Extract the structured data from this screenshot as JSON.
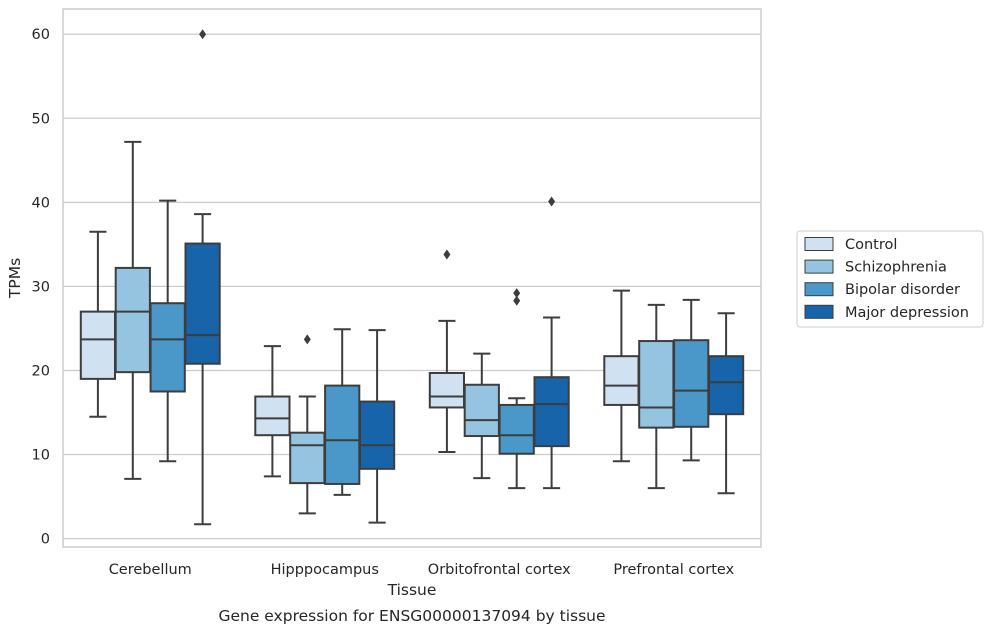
{
  "chart_data": {
    "type": "box",
    "title": "",
    "caption": "Gene expression for ENSG00000137094 by tissue",
    "xlabel": "Tissue",
    "ylabel": "TPMs",
    "ylim": [
      -1,
      63
    ],
    "yticks": [
      0,
      10,
      20,
      30,
      40,
      50,
      60
    ],
    "grid": "horizontal",
    "legend_position": "right",
    "categories": [
      "Cerebellum",
      "Hipppocampus",
      "Orbitofrontal cortex",
      "Prefrontal cortex"
    ],
    "series": [
      {
        "name": "Control",
        "color": "#d0e1f2",
        "boxes": [
          {
            "whislo": 14.5,
            "q1": 19.0,
            "med": 23.7,
            "q3": 27.0,
            "whishi": 36.5,
            "fliers": []
          },
          {
            "whislo": 7.4,
            "q1": 12.3,
            "med": 14.3,
            "q3": 16.9,
            "whishi": 22.9,
            "fliers": []
          },
          {
            "whislo": 10.3,
            "q1": 15.6,
            "med": 16.9,
            "q3": 19.7,
            "whishi": 25.9,
            "fliers": [
              33.8
            ]
          },
          {
            "whislo": 9.2,
            "q1": 15.9,
            "med": 18.2,
            "q3": 21.7,
            "whishi": 29.5,
            "fliers": []
          }
        ]
      },
      {
        "name": "Schizophrenia",
        "color": "#94c4df",
        "boxes": [
          {
            "whislo": 7.1,
            "q1": 19.8,
            "med": 27.0,
            "q3": 32.2,
            "whishi": 47.2,
            "fliers": []
          },
          {
            "whislo": 3.0,
            "q1": 6.6,
            "med": 11.1,
            "q3": 12.6,
            "whishi": 16.9,
            "fliers": [
              23.7
            ]
          },
          {
            "whislo": 7.2,
            "q1": 12.2,
            "med": 14.1,
            "q3": 18.3,
            "whishi": 22.0,
            "fliers": []
          },
          {
            "whislo": 6.0,
            "q1": 13.2,
            "med": 15.6,
            "q3": 23.5,
            "whishi": 27.8,
            "fliers": []
          }
        ]
      },
      {
        "name": "Bipolar disorder",
        "color": "#4a98c9",
        "boxes": [
          {
            "whislo": 9.2,
            "q1": 17.5,
            "med": 23.7,
            "q3": 28.0,
            "whishi": 40.2,
            "fliers": []
          },
          {
            "whislo": 5.2,
            "q1": 6.5,
            "med": 11.7,
            "q3": 18.2,
            "whishi": 24.9,
            "fliers": []
          },
          {
            "whislo": 6.0,
            "q1": 10.1,
            "med": 12.3,
            "q3": 15.9,
            "whishi": 16.7,
            "fliers": [
              28.3,
              29.2
            ]
          },
          {
            "whislo": 9.3,
            "q1": 13.3,
            "med": 17.6,
            "q3": 23.6,
            "whishi": 28.4,
            "fliers": []
          }
        ]
      },
      {
        "name": "Major depression",
        "color": "#1764ab",
        "boxes": [
          {
            "whislo": 1.7,
            "q1": 20.8,
            "med": 24.2,
            "q3": 35.1,
            "whishi": 38.6,
            "fliers": [
              60.0
            ]
          },
          {
            "whislo": 1.9,
            "q1": 8.3,
            "med": 11.1,
            "q3": 16.3,
            "whishi": 24.8,
            "fliers": []
          },
          {
            "whislo": 6.0,
            "q1": 11.0,
            "med": 16.0,
            "q3": 19.2,
            "whishi": 26.3,
            "fliers": [
              40.1
            ]
          },
          {
            "whislo": 5.4,
            "q1": 14.8,
            "med": 18.6,
            "q3": 21.7,
            "whishi": 26.8,
            "fliers": []
          }
        ]
      }
    ]
  }
}
